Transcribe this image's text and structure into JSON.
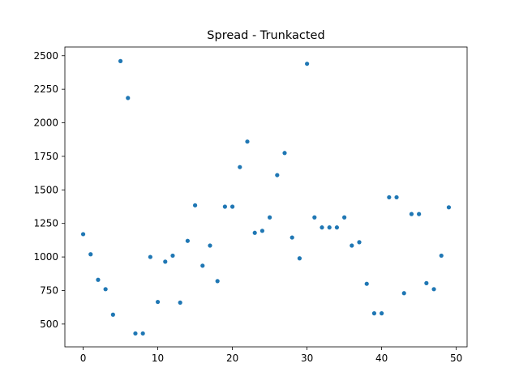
{
  "chart_data": {
    "type": "scatter",
    "title": "Spread - Trunkacted",
    "xlabel": "",
    "ylabel": "",
    "xlim": [
      -2.45,
      51.45
    ],
    "ylim": [
      330,
      2565
    ],
    "xticks": [
      0,
      10,
      20,
      30,
      40,
      50
    ],
    "yticks": [
      500,
      750,
      1000,
      1250,
      1500,
      1750,
      2000,
      2250,
      2500
    ],
    "grid": false,
    "marker_color": "#1f77b4",
    "series": [
      {
        "x": [
          0,
          1,
          2,
          3,
          4,
          5,
          6,
          7,
          8,
          9,
          10,
          11,
          12,
          13,
          14,
          15,
          16,
          17,
          18,
          19,
          20,
          21,
          22,
          23,
          24,
          25,
          26,
          27,
          28,
          29,
          30,
          31,
          32,
          33,
          34,
          35,
          36,
          37,
          38,
          39,
          40,
          41,
          42,
          43,
          44,
          45,
          46,
          47,
          48,
          49
        ],
        "y": [
          1170,
          1020,
          830,
          760,
          570,
          2460,
          2185,
          430,
          430,
          1000,
          665,
          965,
          1010,
          660,
          1120,
          1385,
          935,
          1085,
          820,
          1375,
          1375,
          1670,
          1860,
          1180,
          1195,
          1295,
          1610,
          1775,
          1145,
          990,
          2440,
          1295,
          1220,
          1220,
          1220,
          1295,
          1085,
          1110,
          800,
          580,
          580,
          1445,
          1445,
          730,
          1320,
          1320,
          805,
          760,
          1010,
          1370
        ]
      }
    ]
  }
}
